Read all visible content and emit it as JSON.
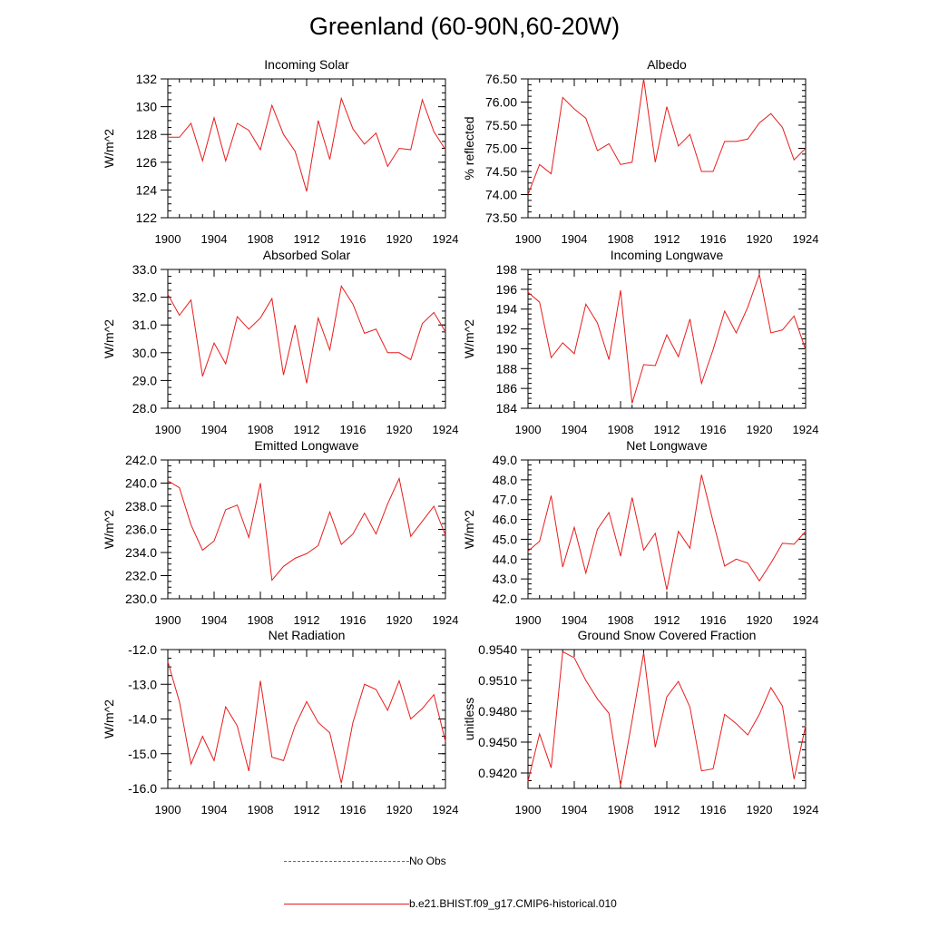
{
  "figure": {
    "title": "Greenland (60-90N,60-20W)"
  },
  "colors": {
    "model_line": "#e81c1c",
    "obs_line": "#5b61c8"
  },
  "legend": [
    {
      "label": "No Obs",
      "style": "dashed",
      "color": "#5b61c8"
    },
    {
      "label": "b.e21.BHIST.f09_g17.CMIP6-historical.010",
      "style": "solid",
      "color": "#e81c1c"
    }
  ],
  "chart_data": [
    {
      "type": "line",
      "title": "Incoming Solar",
      "ylabel": "W/m^2",
      "xlim": [
        1900,
        1924
      ],
      "ylim": [
        122,
        132
      ],
      "xticks": [
        "1900",
        "1904",
        "1908",
        "1912",
        "1916",
        "1920",
        "1924"
      ],
      "yticks": [
        "122",
        "124",
        "126",
        "128",
        "130",
        "132"
      ],
      "x": [
        1900,
        1901,
        1902,
        1903,
        1904,
        1905,
        1906,
        1907,
        1908,
        1909,
        1910,
        1911,
        1912,
        1913,
        1914,
        1915,
        1916,
        1917,
        1918,
        1919,
        1920,
        1921,
        1922,
        1923,
        1924
      ],
      "series": [
        {
          "values": [
            127.8,
            127.8,
            128.8,
            126.1,
            129.2,
            126.1,
            128.8,
            128.3,
            126.9,
            130.1,
            128.0,
            126.8,
            123.9,
            129.0,
            126.2,
            130.6,
            128.4,
            127.3,
            128.1,
            125.7,
            127.0,
            126.9,
            130.5,
            128.2,
            126.9
          ]
        }
      ]
    },
    {
      "type": "line",
      "title": "Albedo",
      "ylabel": "% reflected",
      "xlim": [
        1900,
        1924
      ],
      "ylim": [
        73.5,
        76.5
      ],
      "xticks": [
        "1900",
        "1904",
        "1908",
        "1912",
        "1916",
        "1920",
        "1924"
      ],
      "yticks": [
        "73.50",
        "74.00",
        "74.50",
        "75.00",
        "75.50",
        "76.00",
        "76.50"
      ],
      "x": [
        1900,
        1901,
        1902,
        1903,
        1904,
        1905,
        1906,
        1907,
        1908,
        1909,
        1910,
        1911,
        1912,
        1913,
        1914,
        1915,
        1916,
        1917,
        1918,
        1919,
        1920,
        1921,
        1922,
        1923,
        1924
      ],
      "series": [
        {
          "values": [
            74.0,
            74.65,
            74.45,
            76.1,
            75.85,
            75.65,
            74.95,
            75.1,
            74.65,
            74.7,
            76.5,
            74.7,
            75.9,
            75.05,
            75.3,
            74.5,
            74.5,
            75.15,
            75.15,
            75.2,
            75.55,
            75.75,
            75.45,
            74.75,
            75.0
          ]
        }
      ]
    },
    {
      "type": "line",
      "title": "Absorbed Solar",
      "ylabel": "W/m^2",
      "xlim": [
        1900,
        1924
      ],
      "ylim": [
        28.0,
        33.0
      ],
      "xticks": [
        "1900",
        "1904",
        "1908",
        "1912",
        "1916",
        "1920",
        "1924"
      ],
      "yticks": [
        "28.0",
        "29.0",
        "30.0",
        "31.0",
        "32.0",
        "33.0"
      ],
      "x": [
        1900,
        1901,
        1902,
        1903,
        1904,
        1905,
        1906,
        1907,
        1908,
        1909,
        1910,
        1911,
        1912,
        1913,
        1914,
        1915,
        1916,
        1917,
        1918,
        1919,
        1920,
        1921,
        1922,
        1923,
        1924
      ],
      "series": [
        {
          "values": [
            32.1,
            31.35,
            31.9,
            29.15,
            30.35,
            29.6,
            31.3,
            30.85,
            31.25,
            31.95,
            29.2,
            31.0,
            28.9,
            31.25,
            30.1,
            32.4,
            31.75,
            30.7,
            30.85,
            30.0,
            30.0,
            29.75,
            31.05,
            31.45,
            30.75
          ]
        }
      ]
    },
    {
      "type": "line",
      "title": "Incoming Longwave",
      "ylabel": "W/m^2",
      "xlim": [
        1900,
        1924
      ],
      "ylim": [
        184,
        198
      ],
      "xticks": [
        "1900",
        "1904",
        "1908",
        "1912",
        "1916",
        "1920",
        "1924"
      ],
      "yticks": [
        "184",
        "186",
        "188",
        "190",
        "192",
        "194",
        "196",
        "198"
      ],
      "x": [
        1900,
        1901,
        1902,
        1903,
        1904,
        1905,
        1906,
        1907,
        1908,
        1909,
        1910,
        1911,
        1912,
        1913,
        1914,
        1915,
        1916,
        1917,
        1918,
        1919,
        1920,
        1921,
        1922,
        1923,
        1924
      ],
      "series": [
        {
          "values": [
            195.7,
            194.7,
            189.1,
            190.6,
            189.5,
            194.5,
            192.6,
            188.9,
            195.9,
            184.5,
            188.4,
            188.3,
            191.4,
            189.2,
            193.0,
            186.5,
            189.9,
            193.8,
            191.6,
            194.2,
            197.5,
            191.6,
            191.9,
            193.3,
            189.9
          ]
        }
      ]
    },
    {
      "type": "line",
      "title": "Emitted Longwave",
      "ylabel": "W/m^2",
      "xlim": [
        1900,
        1924
      ],
      "ylim": [
        230.0,
        242.0
      ],
      "xticks": [
        "1900",
        "1904",
        "1908",
        "1912",
        "1916",
        "1920",
        "1924"
      ],
      "yticks": [
        "230.0",
        "232.0",
        "234.0",
        "236.0",
        "238.0",
        "240.0",
        "242.0"
      ],
      "x": [
        1900,
        1901,
        1902,
        1903,
        1904,
        1905,
        1906,
        1907,
        1908,
        1909,
        1910,
        1911,
        1912,
        1913,
        1914,
        1915,
        1916,
        1917,
        1918,
        1919,
        1920,
        1921,
        1922,
        1923,
        1924
      ],
      "series": [
        {
          "values": [
            240.2,
            239.6,
            236.4,
            234.2,
            235.0,
            237.7,
            238.1,
            235.3,
            240.0,
            231.6,
            232.8,
            233.5,
            233.9,
            234.6,
            237.5,
            234.7,
            235.6,
            237.4,
            235.6,
            238.2,
            240.4,
            235.4,
            236.7,
            238.0,
            235.5
          ]
        }
      ]
    },
    {
      "type": "line",
      "title": "Net Longwave",
      "ylabel": "W/m^2",
      "xlim": [
        1900,
        1924
      ],
      "ylim": [
        42.0,
        49.0
      ],
      "xticks": [
        "1900",
        "1904",
        "1908",
        "1912",
        "1916",
        "1920",
        "1924"
      ],
      "yticks": [
        "42.0",
        "43.0",
        "44.0",
        "45.0",
        "46.0",
        "47.0",
        "48.0",
        "49.0"
      ],
      "x": [
        1900,
        1901,
        1902,
        1903,
        1904,
        1905,
        1906,
        1907,
        1908,
        1909,
        1910,
        1911,
        1912,
        1913,
        1914,
        1915,
        1916,
        1917,
        1918,
        1919,
        1920,
        1921,
        1922,
        1923,
        1924
      ],
      "series": [
        {
          "values": [
            44.4,
            44.9,
            47.2,
            43.6,
            45.6,
            43.3,
            45.5,
            46.35,
            44.15,
            47.1,
            44.45,
            45.3,
            42.45,
            45.4,
            44.55,
            48.25,
            45.9,
            43.65,
            44.0,
            43.8,
            42.9,
            43.8,
            44.8,
            44.75,
            45.4
          ]
        }
      ]
    },
    {
      "type": "line",
      "title": "Net Radiation",
      "ylabel": "W/m^2",
      "xlim": [
        1900,
        1924
      ],
      "ylim": [
        -16.0,
        -12.0
      ],
      "xticks": [
        "1900",
        "1904",
        "1908",
        "1912",
        "1916",
        "1920",
        "1924"
      ],
      "yticks": [
        "-16.0",
        "-15.0",
        "-14.0",
        "-13.0",
        "-12.0"
      ],
      "x": [
        1900,
        1901,
        1902,
        1903,
        1904,
        1905,
        1906,
        1907,
        1908,
        1909,
        1910,
        1911,
        1912,
        1913,
        1914,
        1915,
        1916,
        1917,
        1918,
        1919,
        1920,
        1921,
        1922,
        1923,
        1924
      ],
      "series": [
        {
          "values": [
            -12.35,
            -13.5,
            -15.3,
            -14.5,
            -15.2,
            -13.65,
            -14.2,
            -15.5,
            -12.9,
            -15.1,
            -15.2,
            -14.2,
            -13.5,
            -14.1,
            -14.4,
            -15.85,
            -14.1,
            -13.0,
            -13.15,
            -13.75,
            -12.9,
            -14.0,
            -13.7,
            -13.3,
            -14.65
          ]
        }
      ]
    },
    {
      "type": "line",
      "title": "Ground Snow Covered Fraction",
      "ylabel": "unitless",
      "xlim": [
        1900,
        1924
      ],
      "ylim": [
        0.9405,
        0.954
      ],
      "xticks": [
        "1900",
        "1904",
        "1908",
        "1912",
        "1916",
        "1920",
        "1924"
      ],
      "yticks": [
        "0.9420",
        "0.9450",
        "0.9480",
        "0.9510",
        "0.9540"
      ],
      "ytick_values": [
        0.942,
        0.945,
        0.948,
        0.951,
        0.954
      ],
      "x": [
        1900,
        1901,
        1902,
        1903,
        1904,
        1905,
        1906,
        1907,
        1908,
        1909,
        1910,
        1911,
        1912,
        1913,
        1914,
        1915,
        1916,
        1917,
        1918,
        1919,
        1920,
        1921,
        1922,
        1923,
        1924
      ],
      "series": [
        {
          "values": [
            0.9412,
            0.9458,
            0.9425,
            0.9538,
            0.9532,
            0.951,
            0.9492,
            0.9478,
            0.9408,
            0.9471,
            0.9537,
            0.9445,
            0.9494,
            0.9509,
            0.9484,
            0.9422,
            0.9424,
            0.9477,
            0.9468,
            0.9457,
            0.9477,
            0.9503,
            0.9485,
            0.9414,
            0.9466
          ]
        }
      ]
    }
  ]
}
